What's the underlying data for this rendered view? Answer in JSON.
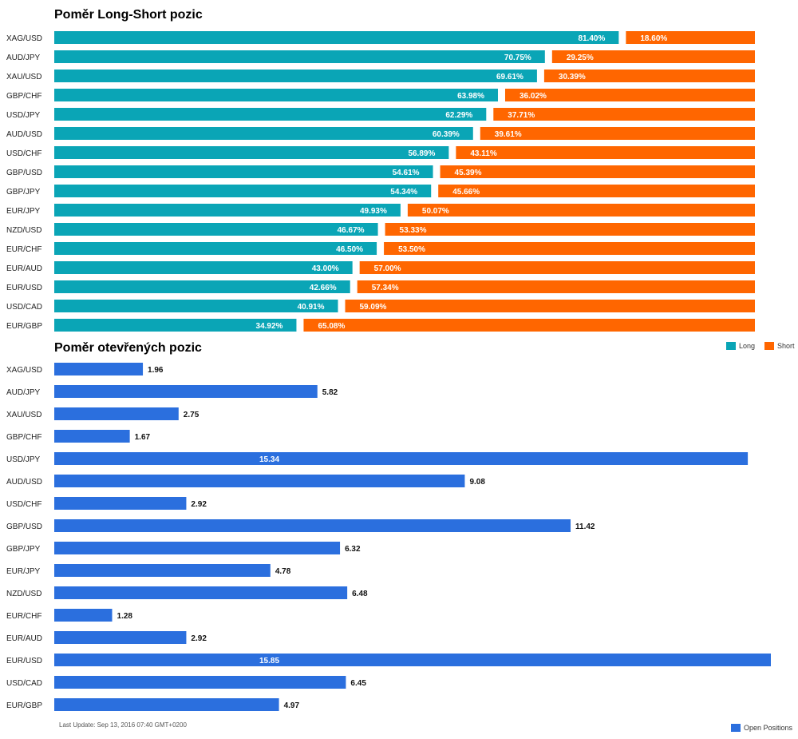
{
  "chart_data": [
    {
      "type": "bar",
      "orientation": "horizontal",
      "stacked": true,
      "title": "Poměr Long-Short pozic",
      "categories": [
        "XAG/USD",
        "AUD/JPY",
        "XAU/USD",
        "GBP/CHF",
        "USD/JPY",
        "AUD/USD",
        "USD/CHF",
        "GBP/USD",
        "GBP/JPY",
        "EUR/JPY",
        "NZD/USD",
        "EUR/CHF",
        "EUR/AUD",
        "EUR/USD",
        "USD/CAD",
        "EUR/GBP"
      ],
      "series": [
        {
          "name": "Long",
          "color": "#0aa5b6",
          "values": [
            81.4,
            70.75,
            69.61,
            63.98,
            62.29,
            60.39,
            56.89,
            54.61,
            54.34,
            49.93,
            46.67,
            46.5,
            43.0,
            42.66,
            40.91,
            34.92
          ]
        },
        {
          "name": "Short",
          "color": "#ff6600",
          "values": [
            18.6,
            29.25,
            30.39,
            36.02,
            37.71,
            39.61,
            43.11,
            45.39,
            45.66,
            50.07,
            53.33,
            53.5,
            57.0,
            57.34,
            59.09,
            65.08
          ]
        }
      ],
      "value_labels": {
        "Long": [
          "81.40%",
          "70.75%",
          "69.61%",
          "63.98%",
          "62.29%",
          "60.39%",
          "56.89%",
          "54.61%",
          "54.34%",
          "49.93%",
          "46.67%",
          "46.50%",
          "43.00%",
          "42.66%",
          "40.91%",
          "34.92%"
        ],
        "Short": [
          "18.60%",
          "29.25%",
          "30.39%",
          "36.02%",
          "37.71%",
          "39.61%",
          "43.11%",
          "45.39%",
          "45.66%",
          "50.07%",
          "53.33%",
          "53.50%",
          "57.00%",
          "57.34%",
          "59.09%",
          "65.08%"
        ]
      },
      "xlim": [
        0,
        100
      ],
      "legend_position": "bottom-right"
    },
    {
      "type": "bar",
      "orientation": "horizontal",
      "title": "Poměr otevřených pozic",
      "categories": [
        "XAG/USD",
        "AUD/JPY",
        "XAU/USD",
        "GBP/CHF",
        "USD/JPY",
        "AUD/USD",
        "USD/CHF",
        "GBP/USD",
        "GBP/JPY",
        "EUR/JPY",
        "NZD/USD",
        "EUR/CHF",
        "EUR/AUD",
        "EUR/USD",
        "USD/CAD",
        "EUR/GBP"
      ],
      "series": [
        {
          "name": "Open Positions",
          "color": "#2b6fde",
          "values": [
            1.96,
            5.82,
            2.75,
            1.67,
            15.34,
            9.08,
            2.92,
            11.42,
            6.32,
            4.78,
            6.48,
            1.28,
            2.92,
            15.85,
            6.45,
            4.97
          ]
        }
      ],
      "value_labels": [
        "1.96",
        "5.82",
        "2.75",
        "1.67",
        "15.34",
        "9.08",
        "2.92",
        "11.42",
        "6.32",
        "4.78",
        "6.48",
        "1.28",
        "2.92",
        "15.85",
        "6.45",
        "4.97"
      ],
      "xlim": [
        0,
        15.85
      ],
      "legend_position": "bottom-right"
    }
  ],
  "legend1": {
    "long_label": "Long",
    "short_label": "Short"
  },
  "legend2": {
    "label": "Open Positions"
  },
  "footer": {
    "last_update": "Last Update: Sep 13, 2016 07:40 GMT+0200"
  }
}
